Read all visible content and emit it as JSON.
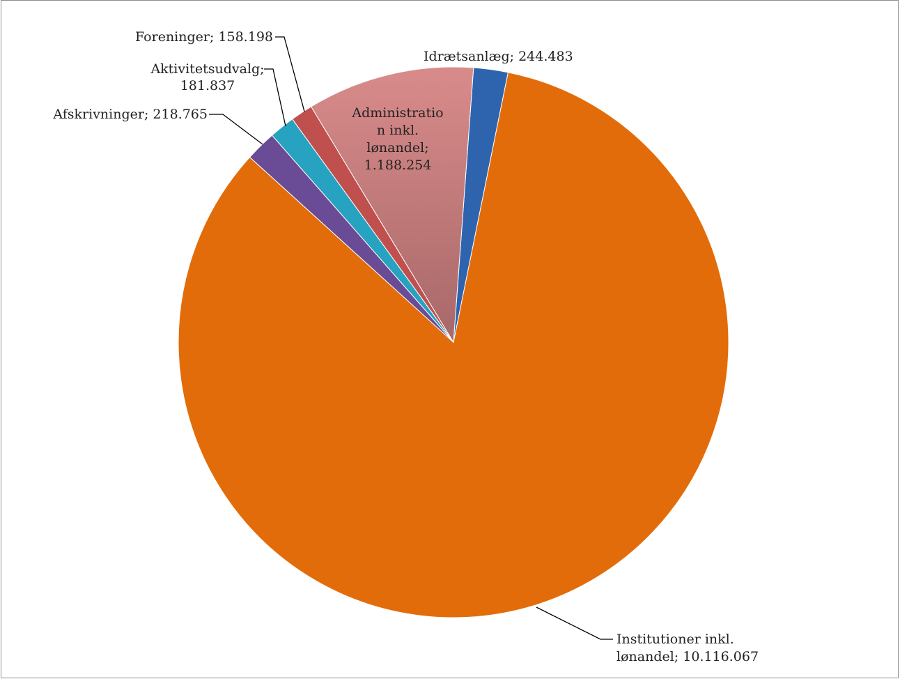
{
  "chart_data": {
    "type": "pie",
    "title": "",
    "slices": [
      {
        "name": "Idrætsanlæg",
        "value": 244483,
        "label_lines": [
          "Idrætsanlæg; 244.483"
        ],
        "color": "#2e64ae",
        "label_side": "outside"
      },
      {
        "name": "Institutioner inkl. lønandel",
        "value": 10116067,
        "label_lines": [
          "Institutioner inkl.",
          "lønandel; 10.116.067"
        ],
        "color": "#e36c0a",
        "label_side": "outside"
      },
      {
        "name": "Afskrivninger",
        "value": 218765,
        "label_lines": [
          "Afskrivninger; 218.765"
        ],
        "color": "#6a4b96",
        "label_side": "outside"
      },
      {
        "name": "Aktivitetsudvalg",
        "value": 181837,
        "label_lines": [
          "Aktivitetsudvalg;",
          "181.837"
        ],
        "color": "#27a2c0",
        "label_side": "outside"
      },
      {
        "name": "Foreninger",
        "value": 158198,
        "label_lines": [
          "Foreninger; 158.198"
        ],
        "color": "#c0504d",
        "label_side": "outside"
      },
      {
        "name": "Administration inkl. lønandel",
        "value": 1188254,
        "label_lines": [
          "Administratio",
          "n inkl.",
          "lønandel;",
          "1.188.254"
        ],
        "color": "#d98b8b",
        "label_side": "inside"
      }
    ],
    "legend": "none"
  }
}
